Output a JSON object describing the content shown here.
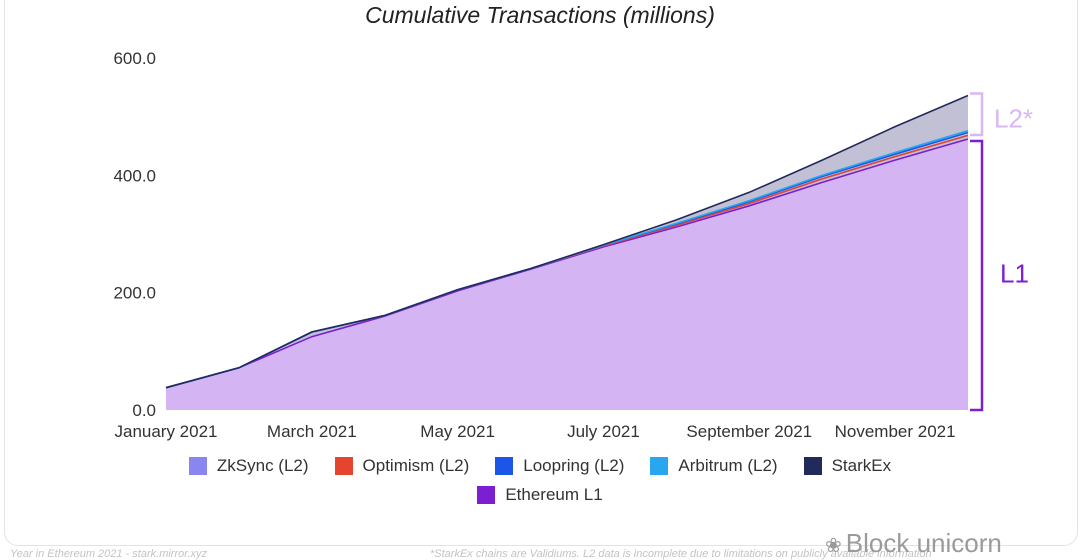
{
  "chart_data": {
    "type": "area",
    "title": "Cumulative Transactions (millions)",
    "xlabel": "",
    "ylabel": "",
    "ylim": [
      0,
      600
    ],
    "yticks": [
      "0.0",
      "200.0",
      "400.0",
      "600.0"
    ],
    "x": [
      "2021-01",
      "2021-02",
      "2021-03",
      "2021-04",
      "2021-05",
      "2021-06",
      "2021-07",
      "2021-08",
      "2021-09",
      "2021-10",
      "2021-11",
      "2021-12"
    ],
    "xticks": [
      "January 2021",
      "March 2021",
      "May 2021",
      "July 2021",
      "September 2021",
      "November 2021"
    ],
    "series": [
      {
        "name": "Ethereum L1",
        "values": [
          38,
          72,
          125,
          160,
          203,
          240,
          278,
          312,
          348,
          388,
          426,
          462
        ]
      },
      {
        "name": "ZkSync (L2)",
        "values": [
          0,
          0,
          8,
          1,
          2,
          1,
          2,
          3,
          4,
          6,
          6,
          6
        ]
      },
      {
        "name": "Optimism (L2)",
        "values": [
          0,
          0,
          0,
          0,
          0,
          0,
          0,
          0,
          0,
          0,
          0,
          0
        ]
      },
      {
        "name": "Loopring (L2)",
        "values": [
          0,
          0,
          0,
          0,
          0,
          0,
          1,
          2,
          3,
          4,
          4,
          5
        ]
      },
      {
        "name": "Arbitrum (L2)",
        "values": [
          0,
          0,
          0,
          0,
          0,
          0,
          0,
          1,
          2,
          2,
          3,
          3
        ]
      },
      {
        "name": "StarkEx",
        "values": [
          0,
          0,
          0,
          0,
          0,
          0,
          1,
          6,
          14,
          26,
          44,
          60
        ]
      }
    ],
    "colors": {
      "Ethereum L1": "#7b1fd0",
      "ZkSync (L2)": "#8a86ef",
      "Optimism (L2)": "#e5452f",
      "Loopring (L2)": "#1c56e8",
      "Arbitrum (L2)": "#28a7ef",
      "StarkEx": "#222a5c"
    },
    "l1_fill": "#d5b4f3",
    "l2_fill": "#c2c0d4",
    "brackets": [
      {
        "label": "L2*",
        "color": "#d7b8f3"
      },
      {
        "label": "L1",
        "color": "#7b1fd0"
      }
    ],
    "legend_position": "bottom"
  },
  "legend": {
    "row1": [
      "ZkSync (L2)",
      "Optimism (L2)",
      "Loopring (L2)",
      "Arbitrum (L2)",
      "StarkEx"
    ],
    "row2": [
      "Ethereum L1"
    ]
  },
  "footer": {
    "left": "Year in Ethereum 2021 - stark.mirror.xyz",
    "right": "*StarkEx chains are Validiums. L2 data is incomplete due to limitations on publicly available information",
    "watermark": "Block unicorn"
  }
}
